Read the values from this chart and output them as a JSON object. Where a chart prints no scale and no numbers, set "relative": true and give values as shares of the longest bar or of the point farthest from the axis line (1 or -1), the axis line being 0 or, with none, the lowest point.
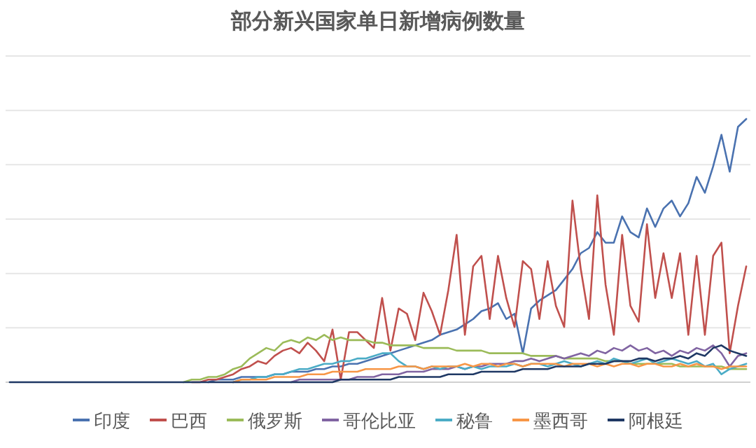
{
  "chart_data": {
    "type": "line",
    "title": "部分新兴国家单日新增病例数量",
    "relative": true,
    "grid": "y",
    "legend": "bottom",
    "marker": "none",
    "line_style": "solid",
    "categories": [
      null,
      null,
      null,
      null,
      null,
      null,
      null,
      null,
      null,
      null,
      null,
      null,
      null,
      null,
      null,
      null,
      null,
      null,
      null,
      null,
      null,
      null,
      null,
      null,
      null,
      null,
      null,
      null,
      null,
      null,
      null,
      null,
      null,
      null,
      null,
      null,
      null,
      null,
      null,
      null,
      null,
      null,
      null,
      null,
      null,
      null,
      null,
      null,
      null,
      null,
      null,
      null,
      null,
      null,
      null,
      null,
      null,
      null,
      null,
      null,
      null,
      null,
      null,
      null,
      null,
      null,
      null,
      null,
      null,
      null,
      null,
      null,
      null,
      null,
      null,
      null,
      null,
      null,
      null,
      null,
      null,
      null,
      null,
      null,
      null,
      null,
      null,
      null,
      null,
      null
    ],
    "series": [
      {
        "name": "印度",
        "color": "#4a72b0",
        "values": [
          null,
          null,
          null,
          null,
          null,
          null,
          null,
          null,
          null,
          null,
          null,
          null,
          null,
          null,
          null,
          null,
          null,
          null,
          null,
          null,
          null,
          null,
          null,
          null,
          0,
          0.01,
          0.01,
          0.01,
          0.02,
          0.02,
          0.02,
          0.02,
          0.03,
          0.03,
          0.04,
          0.04,
          0.04,
          0.05,
          0.05,
          0.06,
          0.06,
          0.07,
          0.07,
          0.08,
          0.09,
          0.1,
          0.11,
          0.12,
          0.13,
          0.14,
          0.15,
          0.16,
          0.18,
          0.19,
          0.2,
          0.22,
          0.24,
          0.27,
          0.28,
          0.3,
          0.24,
          0.26,
          0.11,
          0.28,
          0.31,
          0.33,
          0.35,
          0.39,
          0.43,
          0.49,
          0.51,
          0.57,
          0.53,
          0.53,
          0.63,
          0.57,
          0.55,
          0.66,
          0.59,
          0.66,
          0.69,
          0.63,
          0.68,
          0.78,
          0.72,
          0.82,
          0.94,
          0.8,
          0.97,
          1
        ]
      },
      {
        "name": "巴西",
        "color": "#c0504d",
        "values": [
          null,
          null,
          null,
          null,
          null,
          null,
          null,
          null,
          null,
          null,
          null,
          null,
          null,
          null,
          null,
          null,
          null,
          null,
          null,
          null,
          null,
          null,
          0,
          0,
          0.01,
          0.01,
          0.02,
          0.03,
          0.05,
          0.06,
          0.08,
          0.07,
          0.1,
          0.12,
          0.13,
          0.11,
          0.15,
          0.12,
          0.08,
          0.2,
          0.01,
          0.19,
          0.19,
          0.16,
          0.13,
          0.32,
          0.12,
          0.28,
          0.26,
          0.16,
          0.34,
          0.27,
          0.18,
          0.35,
          0.56,
          0.18,
          0.44,
          0.48,
          0.24,
          0.48,
          0.32,
          0.21,
          0.46,
          0.43,
          0.24,
          0.46,
          0.29,
          0.21,
          0.69,
          0.43,
          0.24,
          0.71,
          0.37,
          0.18,
          0.56,
          0.29,
          0.23,
          0.6,
          0.32,
          0.49,
          0.32,
          0.49,
          0.18,
          0.48,
          0.18,
          0.48,
          0.53,
          0.11,
          0.29,
          0.44
        ]
      },
      {
        "name": "俄罗斯",
        "color": "#9bbb59",
        "values": [
          null,
          null,
          null,
          null,
          null,
          null,
          null,
          null,
          null,
          null,
          null,
          null,
          null,
          null,
          null,
          null,
          null,
          null,
          null,
          null,
          null,
          0,
          0.01,
          0.01,
          0.02,
          0.02,
          0.03,
          0.05,
          0.06,
          0.09,
          0.11,
          0.13,
          0.12,
          0.15,
          0.16,
          0.15,
          0.17,
          0.16,
          0.18,
          0.16,
          0.17,
          0.16,
          0.16,
          0.16,
          0.15,
          0.15,
          0.14,
          0.14,
          0.14,
          0.14,
          0.13,
          0.13,
          0.13,
          0.13,
          0.12,
          0.12,
          0.12,
          0.12,
          0.11,
          0.11,
          0.11,
          0.11,
          0.11,
          0.1,
          0.1,
          0.1,
          0.1,
          0.09,
          0.09,
          0.09,
          0.09,
          0.09,
          0.08,
          0.08,
          0.08,
          0.07,
          0.07,
          0.07,
          0.07,
          0.07,
          0.07,
          0.06,
          0.06,
          0.06,
          0.06,
          0.06,
          0.06,
          0.05,
          0.05,
          0.05
        ]
      },
      {
        "name": "哥伦比亚",
        "color": "#8064a2",
        "values": [
          null,
          null,
          null,
          null,
          null,
          null,
          null,
          null,
          null,
          null,
          null,
          null,
          null,
          null,
          null,
          null,
          null,
          null,
          null,
          null,
          null,
          null,
          null,
          null,
          null,
          null,
          null,
          null,
          null,
          null,
          null,
          null,
          null,
          null,
          0,
          0.01,
          0.01,
          0.01,
          0.01,
          0.01,
          0.01,
          0.01,
          0.02,
          0.02,
          0.02,
          0.03,
          0.03,
          0.03,
          0.04,
          0.04,
          0.04,
          0.05,
          0.05,
          0.05,
          0.06,
          0.05,
          0.06,
          0.06,
          0.07,
          0.07,
          0.07,
          0.08,
          0.08,
          0.09,
          0.08,
          0.09,
          0.1,
          0.09,
          0.1,
          0.11,
          0.1,
          0.12,
          0.11,
          0.13,
          0.12,
          0.14,
          0.12,
          0.13,
          0.11,
          0.12,
          0.1,
          0.12,
          0.11,
          0.13,
          0.12,
          0.14,
          0.11,
          0.06,
          0.1,
          0.11
        ]
      },
      {
        "name": "秘鲁",
        "color": "#4bacc6",
        "values": [
          null,
          null,
          null,
          null,
          null,
          null,
          null,
          null,
          null,
          null,
          null,
          null,
          null,
          null,
          null,
          null,
          null,
          null,
          null,
          null,
          null,
          null,
          null,
          null,
          null,
          null,
          null,
          0,
          0.01,
          0.01,
          0.02,
          0.02,
          0.03,
          0.03,
          0.04,
          0.05,
          0.05,
          0.06,
          0.07,
          0.07,
          0.08,
          0.08,
          0.09,
          0.09,
          0.1,
          0.11,
          0.11,
          0.08,
          0.06,
          0.06,
          0.05,
          0.06,
          0.05,
          0.06,
          0.06,
          0.05,
          0.06,
          0.05,
          0.06,
          0.06,
          0.06,
          0.07,
          0.06,
          0.07,
          0.07,
          0.06,
          0.07,
          0.08,
          0.07,
          0.06,
          0.07,
          0.08,
          0.07,
          0.09,
          0.08,
          0.07,
          0.08,
          0.09,
          0.07,
          0.08,
          0.09,
          0.08,
          0.07,
          0.08,
          0.06,
          0.07,
          0.03,
          0.05,
          0.06,
          0.07
        ]
      },
      {
        "name": "墨西哥",
        "color": "#f79646",
        "values": [
          null,
          null,
          null,
          null,
          null,
          null,
          null,
          null,
          null,
          null,
          null,
          null,
          null,
          null,
          null,
          null,
          null,
          null,
          null,
          null,
          null,
          null,
          null,
          null,
          null,
          null,
          null,
          0,
          0.01,
          0.01,
          0.01,
          0.01,
          0.02,
          0.02,
          0.02,
          0.02,
          0.03,
          0.03,
          0.03,
          0.04,
          0.04,
          0.04,
          0.04,
          0.05,
          0.05,
          0.05,
          0.05,
          0.06,
          0.06,
          0.06,
          0.05,
          0.06,
          0.06,
          0.06,
          0.06,
          0.07,
          0.06,
          0.07,
          0.07,
          0.06,
          0.07,
          0.07,
          0.06,
          0.07,
          0.07,
          0.07,
          0.07,
          0.06,
          0.07,
          0.07,
          0.07,
          0.06,
          0.07,
          0.06,
          0.07,
          0.07,
          0.06,
          0.07,
          0.07,
          0.06,
          0.06,
          0.07,
          0.06,
          0.07,
          0.06,
          0.06,
          0.05,
          0.06,
          0.06,
          0.06
        ]
      },
      {
        "name": "阿根廷",
        "color": "#1f3864",
        "values": [
          0,
          0,
          0,
          0,
          0,
          0,
          0,
          0,
          0,
          0,
          0,
          0,
          0,
          0,
          0,
          0,
          0,
          0,
          0,
          0,
          0,
          0,
          0,
          0,
          0,
          0,
          0,
          0,
          0,
          0,
          0,
          0,
          0,
          0,
          0,
          0,
          0,
          0,
          0,
          0,
          0.01,
          0.01,
          0.01,
          0.01,
          0.01,
          0.01,
          0.01,
          0.02,
          0.02,
          0.02,
          0.02,
          0.02,
          0.02,
          0.03,
          0.03,
          0.03,
          0.03,
          0.04,
          0.04,
          0.04,
          0.04,
          0.04,
          0.05,
          0.05,
          0.05,
          0.05,
          0.06,
          0.06,
          0.06,
          0.06,
          0.07,
          0.07,
          0.07,
          0.08,
          0.08,
          0.08,
          0.09,
          0.09,
          0.08,
          0.09,
          0.09,
          0.1,
          0.09,
          0.11,
          0.1,
          0.13,
          0.14,
          0.12,
          0.11,
          0.1
        ]
      }
    ]
  }
}
